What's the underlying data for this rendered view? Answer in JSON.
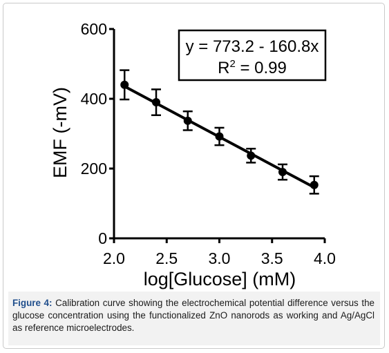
{
  "chart_data": {
    "type": "scatter",
    "xlabel": "log[Glucose] (mM)",
    "ylabel": "EMF (-mV)",
    "xlim": [
      2.0,
      4.0
    ],
    "ylim": [
      0,
      600
    ],
    "x_ticks": [
      2.0,
      2.5,
      3.0,
      3.5,
      4.0
    ],
    "x_tick_labels": [
      "2.0",
      "2.5",
      "3.0",
      "3.5",
      "4.0"
    ],
    "y_ticks": [
      0,
      200,
      400,
      600
    ],
    "y_tick_labels": [
      "0",
      "200",
      "400",
      "600"
    ],
    "grid": false,
    "series": [
      {
        "x": [
          2.1,
          2.4,
          2.7,
          3.0,
          3.3,
          3.6,
          3.9
        ],
        "y": [
          440,
          390,
          337,
          292,
          237,
          190,
          153
        ],
        "error": [
          42,
          37,
          27,
          25,
          20,
          22,
          25
        ]
      }
    ],
    "fit": {
      "slope": -160.8,
      "intercept": 773.2,
      "x_range": [
        2.1,
        3.9
      ]
    },
    "annotation": {
      "equation": "y = 773.2 - 160.8x",
      "r2_prefix": "R",
      "r2_superscript": "2",
      "r2_value": " = 0.99"
    }
  },
  "caption": {
    "label": "Figure 4:",
    "text": " Calibration curve showing the electrochemical potential difference versus the glucose concentration using the functionalized ZnO nanorods as working and Ag/AgCl as reference microelectrodes."
  },
  "colors": {
    "ink": "#000000",
    "caption_label": "#1f4e8c",
    "caption_bg": "#f2f2f2",
    "frame_border": "#c9c9c9"
  }
}
